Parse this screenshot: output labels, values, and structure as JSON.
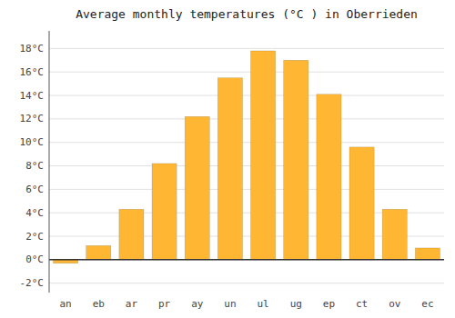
{
  "chart_data": {
    "type": "bar",
    "title": "Average monthly temperatures (°C ) in Oberrieden",
    "categories": [
      "an",
      "eb",
      "ar",
      "pr",
      "ay",
      "un",
      "ul",
      "ug",
      "ep",
      "ct",
      "ov",
      "ec"
    ],
    "values": [
      -0.3,
      1.2,
      4.3,
      8.2,
      12.2,
      15.5,
      17.8,
      17.0,
      14.1,
      9.6,
      4.3,
      1.0
    ],
    "color": "#FFB733",
    "ylim": [
      -2.8,
      19.5
    ],
    "yticks": [
      {
        "value": -2,
        "label": "-2°C"
      },
      {
        "value": 0,
        "label": "0°C"
      },
      {
        "value": 2,
        "label": "2°C"
      },
      {
        "value": 4,
        "label": "4°C"
      },
      {
        "value": 6,
        "label": "6°C"
      },
      {
        "value": 8,
        "label": "8°C"
      },
      {
        "value": 10,
        "label": "10°C"
      },
      {
        "value": 12,
        "label": "12°C"
      },
      {
        "value": 14,
        "label": "14°C"
      },
      {
        "value": 16,
        "label": "16°C"
      },
      {
        "value": 18,
        "label": "18°C"
      }
    ],
    "grid": true
  }
}
